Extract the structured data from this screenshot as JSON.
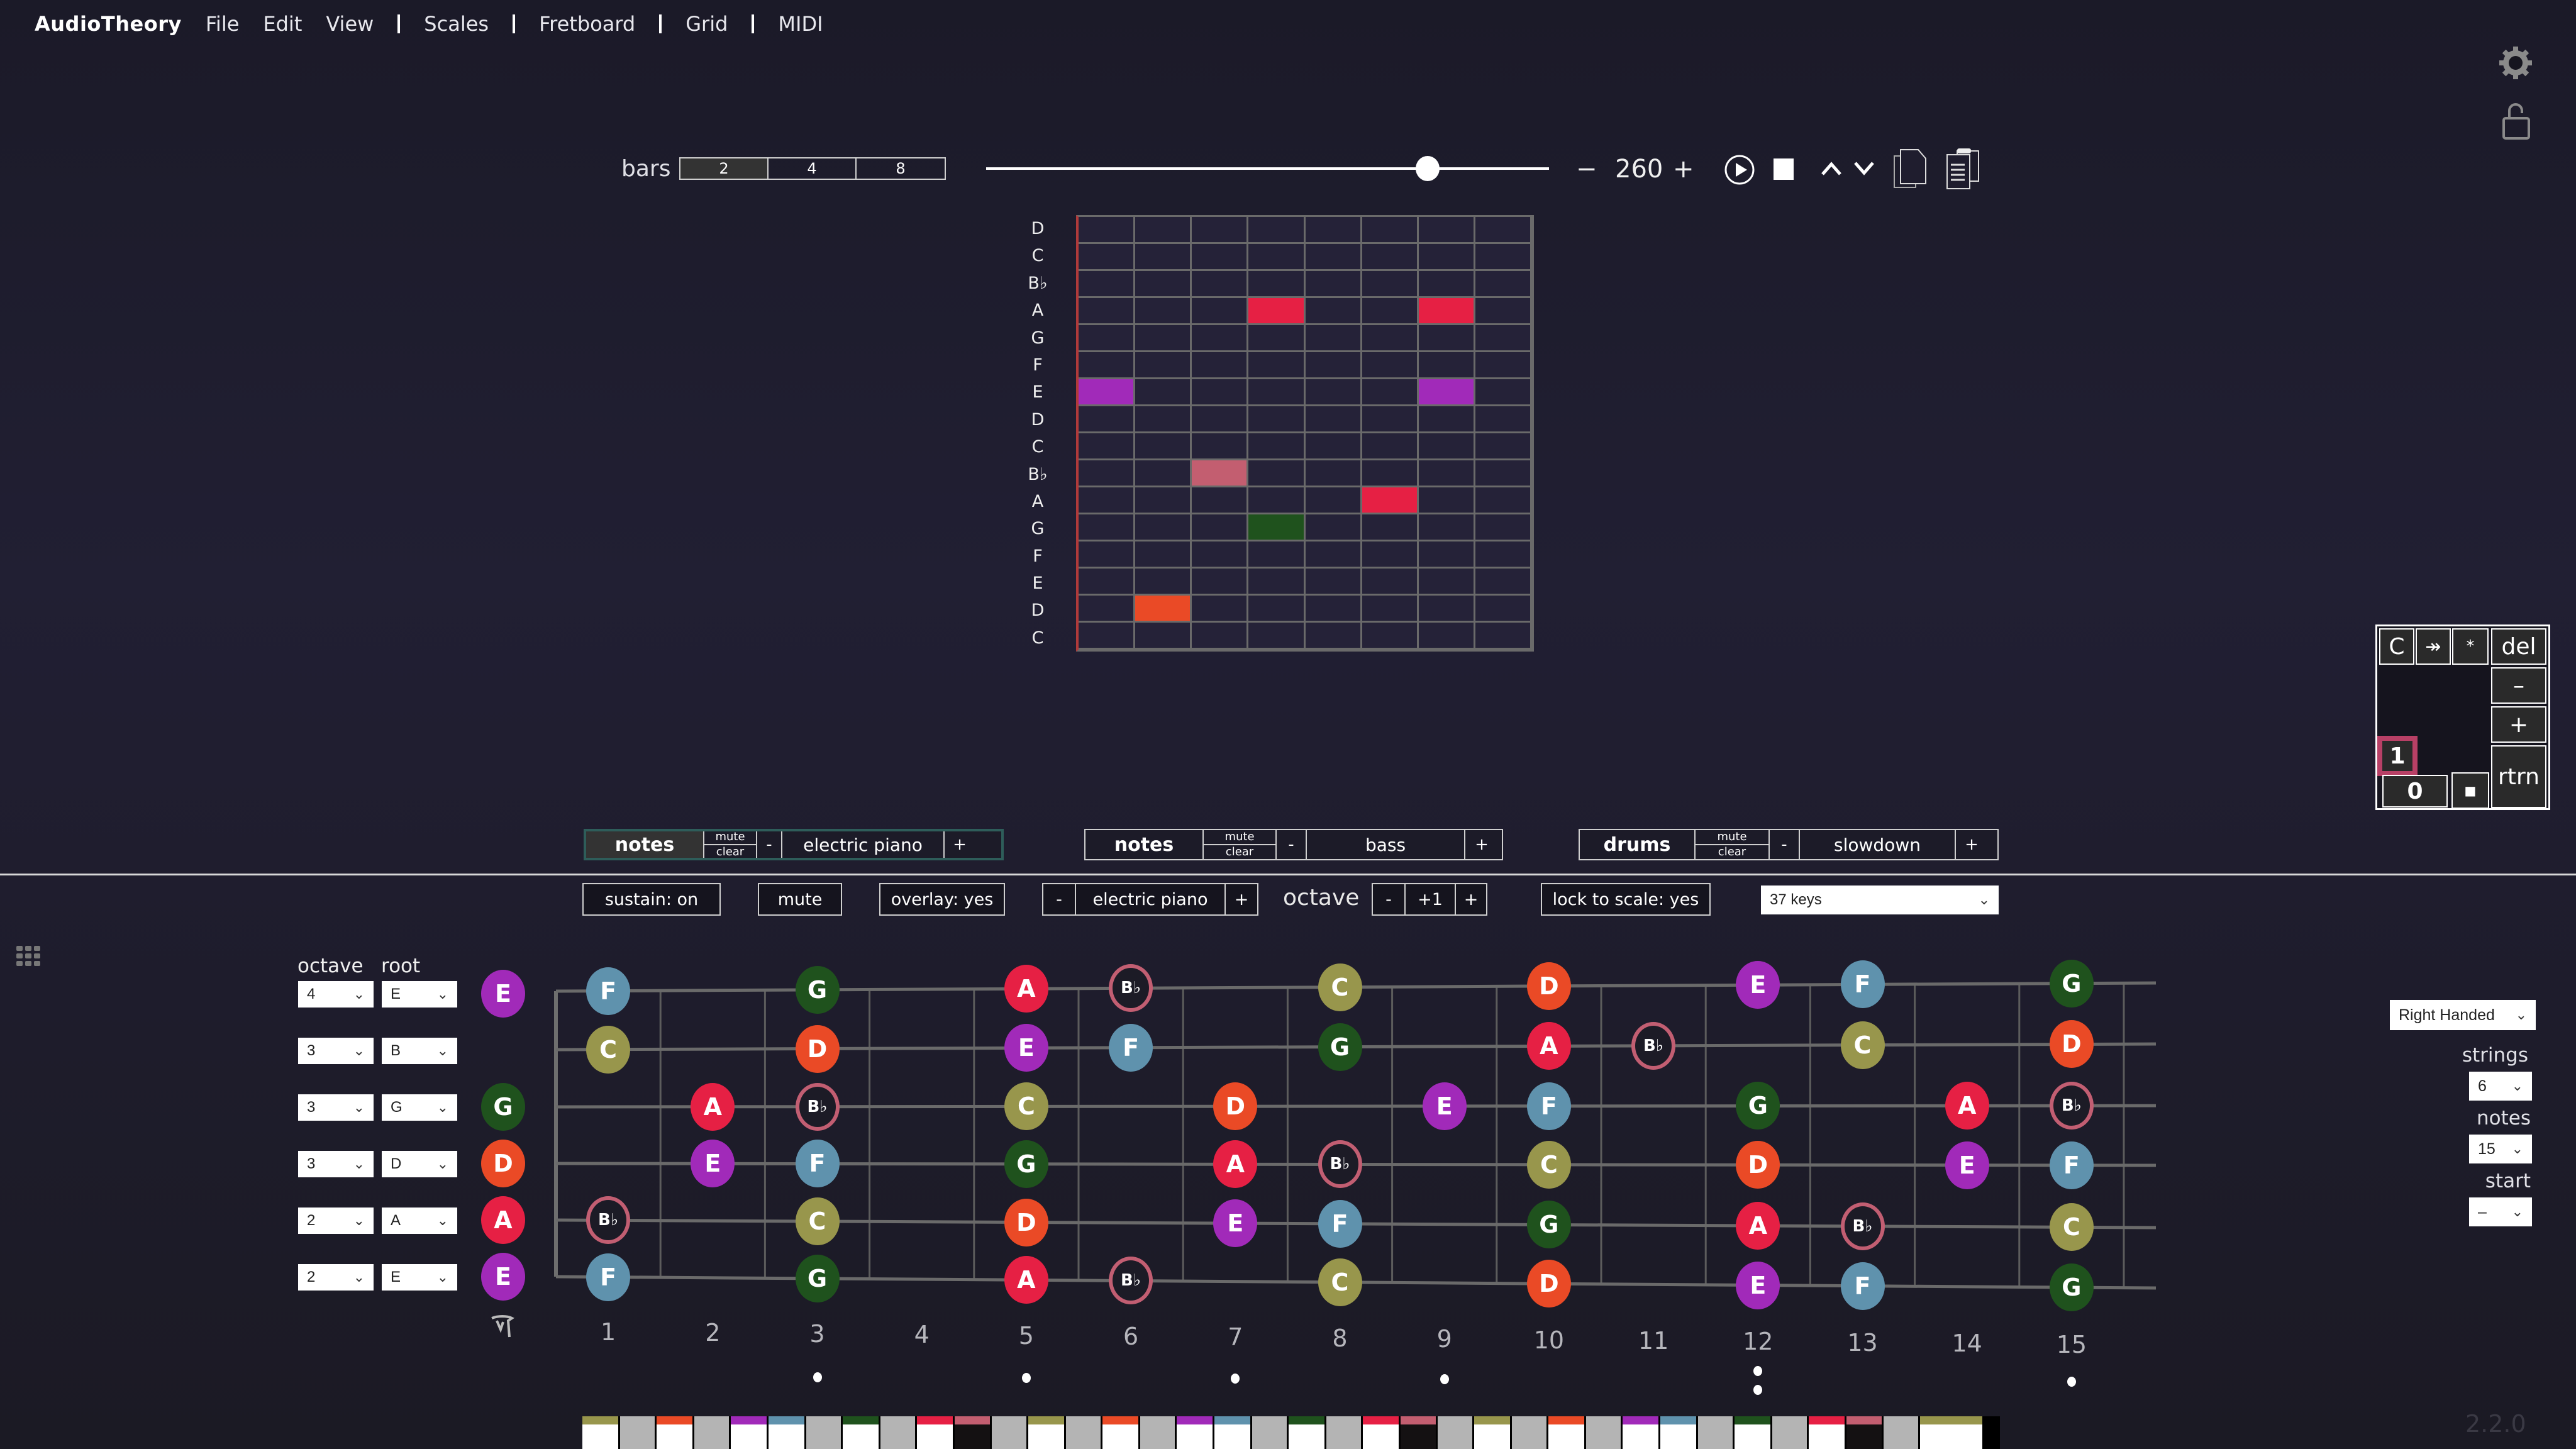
{
  "menubar": {
    "brand": "AudioTheory",
    "items": [
      "File",
      "Edit",
      "View",
      "Scales",
      "Fretboard",
      "Grid",
      "MIDI"
    ]
  },
  "toolbar": {
    "bars_label": "bars",
    "bars_options": [
      "2",
      "4",
      "8"
    ],
    "bars_selected": "2",
    "tempo_minus": "−",
    "tempo_value": "260",
    "tempo_plus": "+",
    "slider_position_pct": 76
  },
  "piano_roll": {
    "row_labels": [
      "D",
      "C",
      "B♭",
      "A",
      "G",
      "F",
      "E",
      "D",
      "C",
      "B♭",
      "A",
      "G",
      "F",
      "E",
      "D",
      "C"
    ],
    "columns": 8,
    "cells": [
      {
        "row": 3,
        "col": 3,
        "note": "A",
        "color": "#e62044"
      },
      {
        "row": 3,
        "col": 6,
        "note": "A",
        "color": "#e62044"
      },
      {
        "row": 6,
        "col": 0,
        "note": "E",
        "color": "#a12ab9"
      },
      {
        "row": 6,
        "col": 6,
        "note": "E",
        "color": "#a12ab9"
      },
      {
        "row": 9,
        "col": 2,
        "note": "B♭",
        "color": "#c35e70"
      },
      {
        "row": 10,
        "col": 5,
        "note": "A",
        "color": "#e62044"
      },
      {
        "row": 11,
        "col": 3,
        "note": "G",
        "color": "#1f521d"
      },
      {
        "row": 14,
        "col": 1,
        "note": "D",
        "color": "#ea4a26"
      }
    ]
  },
  "numpad": {
    "keys": {
      "clear": "C",
      "skip": "↠",
      "star": "*",
      "del": "del",
      "minus": "–",
      "plus": "+",
      "one": "1",
      "zero": "0",
      "dot": "■",
      "return": "rtrn"
    }
  },
  "tracks": [
    {
      "kind": "notes",
      "mute": "mute",
      "clear": "clear",
      "minus": "-",
      "instrument": "electric piano",
      "plus": "+",
      "active": true
    },
    {
      "kind": "notes",
      "mute": "mute",
      "clear": "clear",
      "minus": "-",
      "instrument": "bass",
      "plus": "+",
      "active": false
    },
    {
      "kind": "drums",
      "mute": "mute",
      "clear": "clear",
      "minus": "-",
      "instrument": "slowdown",
      "plus": "+",
      "active": false
    }
  ],
  "options": {
    "sustain": "sustain: on",
    "mute": "mute",
    "overlay": "overlay: yes",
    "instrument_minus": "-",
    "instrument": "electric piano",
    "instrument_plus": "+",
    "octave_label": "octave",
    "octave_minus": "-",
    "octave_value": "+1",
    "octave_plus": "+",
    "lock_to_scale": "lock to scale: yes",
    "keys_select": "37 keys"
  },
  "tuning": {
    "octave_header": "octave",
    "root_header": "root",
    "strings": [
      {
        "octave": "4",
        "root": "E",
        "open_note": "E",
        "color": "#a12ab9"
      },
      {
        "octave": "3",
        "root": "B",
        "open_note": "",
        "color": ""
      },
      {
        "octave": "3",
        "root": "G",
        "open_note": "G",
        "color": "#1f521d"
      },
      {
        "octave": "3",
        "root": "D",
        "open_note": "D",
        "color": "#ea4a26"
      },
      {
        "octave": "2",
        "root": "A",
        "open_note": "A",
        "color": "#e62044"
      },
      {
        "octave": "2",
        "root": "E",
        "open_note": "E",
        "color": "#a12ab9"
      }
    ]
  },
  "fretboard": {
    "fret_numbers": [
      "1",
      "2",
      "3",
      "4",
      "5",
      "6",
      "7",
      "8",
      "9",
      "10",
      "11",
      "12",
      "13",
      "14",
      "15"
    ],
    "inlay_frets": [
      3,
      5,
      7,
      9,
      12,
      15
    ],
    "double_inlay_frets": [
      12
    ],
    "notes": [
      {
        "s": 0,
        "f": 1,
        "n": "F"
      },
      {
        "s": 0,
        "f": 3,
        "n": "G"
      },
      {
        "s": 0,
        "f": 5,
        "n": "A"
      },
      {
        "s": 0,
        "f": 6,
        "n": "B♭"
      },
      {
        "s": 0,
        "f": 8,
        "n": "C"
      },
      {
        "s": 0,
        "f": 10,
        "n": "D"
      },
      {
        "s": 0,
        "f": 12,
        "n": "E"
      },
      {
        "s": 0,
        "f": 13,
        "n": "F"
      },
      {
        "s": 0,
        "f": 15,
        "n": "G"
      },
      {
        "s": 1,
        "f": 1,
        "n": "C"
      },
      {
        "s": 1,
        "f": 3,
        "n": "D"
      },
      {
        "s": 1,
        "f": 5,
        "n": "E"
      },
      {
        "s": 1,
        "f": 6,
        "n": "F"
      },
      {
        "s": 1,
        "f": 8,
        "n": "G"
      },
      {
        "s": 1,
        "f": 10,
        "n": "A"
      },
      {
        "s": 1,
        "f": 11,
        "n": "B♭"
      },
      {
        "s": 1,
        "f": 13,
        "n": "C"
      },
      {
        "s": 1,
        "f": 15,
        "n": "D"
      },
      {
        "s": 2,
        "f": 2,
        "n": "A"
      },
      {
        "s": 2,
        "f": 3,
        "n": "B♭"
      },
      {
        "s": 2,
        "f": 5,
        "n": "C"
      },
      {
        "s": 2,
        "f": 7,
        "n": "D"
      },
      {
        "s": 2,
        "f": 9,
        "n": "E"
      },
      {
        "s": 2,
        "f": 10,
        "n": "F"
      },
      {
        "s": 2,
        "f": 12,
        "n": "G"
      },
      {
        "s": 2,
        "f": 14,
        "n": "A"
      },
      {
        "s": 2,
        "f": 15,
        "n": "B♭"
      },
      {
        "s": 3,
        "f": 2,
        "n": "E"
      },
      {
        "s": 3,
        "f": 3,
        "n": "F"
      },
      {
        "s": 3,
        "f": 5,
        "n": "G"
      },
      {
        "s": 3,
        "f": 7,
        "n": "A"
      },
      {
        "s": 3,
        "f": 8,
        "n": "B♭"
      },
      {
        "s": 3,
        "f": 10,
        "n": "C"
      },
      {
        "s": 3,
        "f": 12,
        "n": "D"
      },
      {
        "s": 3,
        "f": 14,
        "n": "E"
      },
      {
        "s": 3,
        "f": 15,
        "n": "F"
      },
      {
        "s": 4,
        "f": 1,
        "n": "B♭"
      },
      {
        "s": 4,
        "f": 3,
        "n": "C"
      },
      {
        "s": 4,
        "f": 5,
        "n": "D"
      },
      {
        "s": 4,
        "f": 7,
        "n": "E"
      },
      {
        "s": 4,
        "f": 8,
        "n": "F"
      },
      {
        "s": 4,
        "f": 10,
        "n": "G"
      },
      {
        "s": 4,
        "f": 12,
        "n": "A"
      },
      {
        "s": 4,
        "f": 13,
        "n": "B♭"
      },
      {
        "s": 4,
        "f": 15,
        "n": "C"
      },
      {
        "s": 5,
        "f": 1,
        "n": "F"
      },
      {
        "s": 5,
        "f": 3,
        "n": "G"
      },
      {
        "s": 5,
        "f": 5,
        "n": "A"
      },
      {
        "s": 5,
        "f": 6,
        "n": "B♭"
      },
      {
        "s": 5,
        "f": 8,
        "n": "C"
      },
      {
        "s": 5,
        "f": 10,
        "n": "D"
      },
      {
        "s": 5,
        "f": 12,
        "n": "E"
      },
      {
        "s": 5,
        "f": 13,
        "n": "F"
      },
      {
        "s": 5,
        "f": 15,
        "n": "G"
      }
    ]
  },
  "note_colors": {
    "C": "#98964c",
    "D": "#ea4a26",
    "E": "#a12ab9",
    "F": "#5f92ad",
    "G": "#1f521d",
    "A": "#e62044",
    "B♭": "#c35e70"
  },
  "right_panel": {
    "handedness": "Right Handed",
    "strings_label": "strings",
    "strings_value": "6",
    "notes_label": "notes",
    "notes_value": "15",
    "start_label": "start",
    "start_value": "–"
  },
  "keyboard": {
    "keys": [
      {
        "t": "w",
        "c": "C"
      },
      {
        "t": "b",
        "c": ""
      },
      {
        "t": "w",
        "c": "D"
      },
      {
        "t": "b",
        "c": ""
      },
      {
        "t": "w",
        "c": "E"
      },
      {
        "t": "w",
        "c": "F"
      },
      {
        "t": "b",
        "c": ""
      },
      {
        "t": "w",
        "c": "G"
      },
      {
        "t": "b",
        "c": ""
      },
      {
        "t": "w",
        "c": "A"
      },
      {
        "t": "k",
        "c": "B♭"
      },
      {
        "t": "b",
        "c": ""
      },
      {
        "t": "w",
        "c": "C"
      },
      {
        "t": "b",
        "c": ""
      },
      {
        "t": "w",
        "c": "D"
      },
      {
        "t": "b",
        "c": ""
      },
      {
        "t": "w",
        "c": "E"
      },
      {
        "t": "w",
        "c": "F"
      },
      {
        "t": "b",
        "c": ""
      },
      {
        "t": "w",
        "c": "G"
      },
      {
        "t": "b",
        "c": ""
      },
      {
        "t": "w",
        "c": "A"
      },
      {
        "t": "k",
        "c": "B♭"
      },
      {
        "t": "b",
        "c": ""
      },
      {
        "t": "w",
        "c": "C"
      },
      {
        "t": "b",
        "c": ""
      },
      {
        "t": "w",
        "c": "D"
      },
      {
        "t": "b",
        "c": ""
      },
      {
        "t": "w",
        "c": "E"
      },
      {
        "t": "w",
        "c": "F"
      },
      {
        "t": "b",
        "c": ""
      },
      {
        "t": "w",
        "c": "G"
      },
      {
        "t": "b",
        "c": ""
      },
      {
        "t": "w",
        "c": "A"
      },
      {
        "t": "k",
        "c": "B♭"
      },
      {
        "t": "b",
        "c": ""
      },
      {
        "t": "W",
        "c": "C"
      }
    ]
  },
  "version": "2.2.0"
}
